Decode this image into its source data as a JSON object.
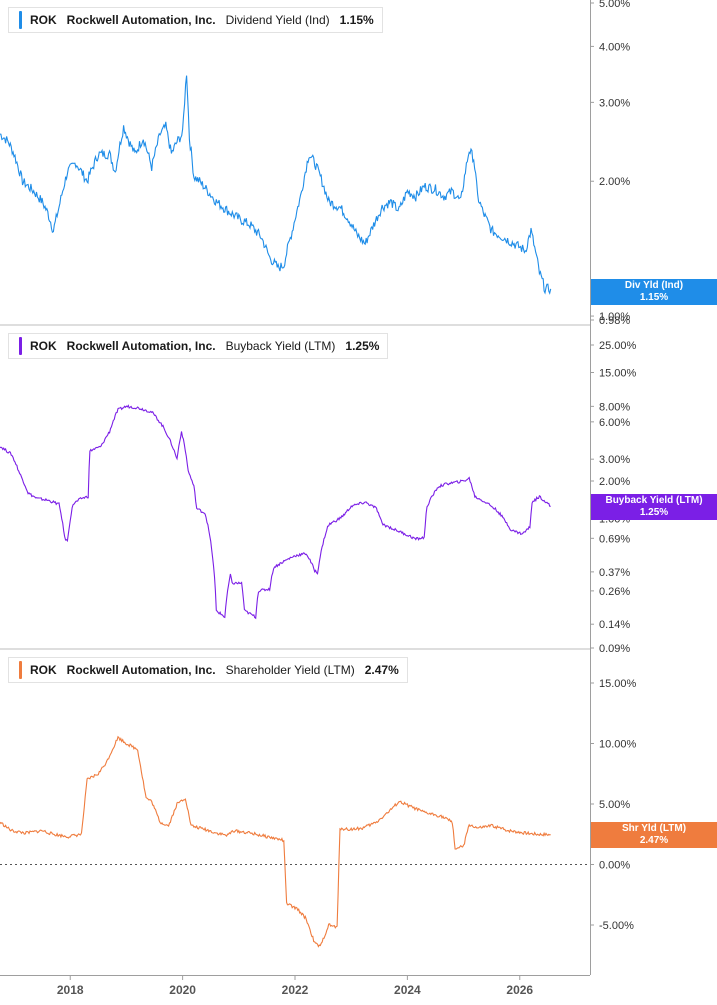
{
  "chart_data": [
    {
      "type": "line",
      "ticker": "ROK",
      "company": "Rockwell Automation, Inc.",
      "metric": "Dividend Yield (Ind)",
      "current_value": "1.15%",
      "value_label_name": "Div Yld (Ind)",
      "color": "#1f8de8",
      "scale": "log",
      "ylim": [
        0.98,
        5.0
      ],
      "yticks": [
        {
          "v": 5.0,
          "label": "5.00%"
        },
        {
          "v": 4.0,
          "label": "4.00%"
        },
        {
          "v": 3.0,
          "label": "3.00%"
        },
        {
          "v": 2.0,
          "label": "2.00%"
        },
        {
          "v": 1.0,
          "label": "1.00%"
        },
        {
          "v": 0.98,
          "label": "0.98%"
        }
      ],
      "x": [
        2016.75,
        2016.9,
        2017.0,
        2017.15,
        2017.35,
        2017.5,
        2017.6,
        2017.7,
        2017.8,
        2017.95,
        2018.1,
        2018.3,
        2018.5,
        2018.7,
        2018.8,
        2018.95,
        2019.05,
        2019.15,
        2019.3,
        2019.45,
        2019.6,
        2019.7,
        2019.8,
        2019.9,
        2020.0,
        2020.07,
        2020.12,
        2020.2,
        2020.3,
        2020.45,
        2020.6,
        2020.8,
        2021.0,
        2021.2,
        2021.4,
        2021.55,
        2021.7,
        2021.8,
        2021.95,
        2022.1,
        2022.25,
        2022.35,
        2022.45,
        2022.6,
        2022.8,
        2022.95,
        2023.1,
        2023.25,
        2023.4,
        2023.55,
        2023.7,
        2023.85,
        2024.0,
        2024.15,
        2024.3,
        2024.5,
        2024.65,
        2024.8,
        2024.95,
        2025.1,
        2025.18,
        2025.25,
        2025.35,
        2025.5,
        2025.7,
        2025.9,
        2026.1,
        2026.2,
        2026.3,
        2026.35,
        2026.45,
        2026.55
      ],
      "values": [
        2.55,
        2.45,
        2.3,
        2.0,
        1.9,
        1.8,
        1.7,
        1.55,
        1.75,
        2.1,
        2.2,
        2.0,
        2.3,
        2.3,
        2.1,
        2.65,
        2.45,
        2.3,
        2.5,
        2.15,
        2.55,
        2.65,
        2.3,
        2.45,
        2.55,
        3.5,
        2.5,
        2.05,
        2.0,
        1.9,
        1.8,
        1.72,
        1.65,
        1.6,
        1.5,
        1.35,
        1.28,
        1.3,
        1.55,
        1.85,
        2.3,
        2.2,
        2.05,
        1.8,
        1.75,
        1.65,
        1.52,
        1.45,
        1.6,
        1.75,
        1.8,
        1.72,
        1.9,
        1.85,
        1.95,
        1.92,
        1.85,
        1.9,
        1.8,
        2.35,
        2.25,
        1.85,
        1.7,
        1.55,
        1.5,
        1.45,
        1.4,
        1.55,
        1.35,
        1.25,
        1.15,
        1.15
      ]
    },
    {
      "type": "line",
      "ticker": "ROK",
      "company": "Rockwell Automation, Inc.",
      "metric": "Buyback Yield (LTM)",
      "current_value": "1.25%",
      "value_label_name": "Buyback Yield (LTM)",
      "color": "#7b1fe6",
      "scale": "log",
      "ylim": [
        0.09,
        35.0
      ],
      "yticks": [
        {
          "v": 25.0,
          "label": "25.00%"
        },
        {
          "v": 15.0,
          "label": "15.00%"
        },
        {
          "v": 8.0,
          "label": "8.00%"
        },
        {
          "v": 6.0,
          "label": "6.00%"
        },
        {
          "v": 3.0,
          "label": "3.00%"
        },
        {
          "v": 2.0,
          "label": "2.00%"
        },
        {
          "v": 1.0,
          "label": "1.00%"
        },
        {
          "v": 0.69,
          "label": "0.69%"
        },
        {
          "v": 0.37,
          "label": "0.37%"
        },
        {
          "v": 0.26,
          "label": "0.26%"
        },
        {
          "v": 0.14,
          "label": "0.14%"
        },
        {
          "v": 0.09,
          "label": "0.09%"
        }
      ],
      "x": [
        2016.75,
        2016.95,
        2017.1,
        2017.25,
        2017.4,
        2017.6,
        2017.8,
        2017.9,
        2017.95,
        2018.05,
        2018.2,
        2018.32,
        2018.35,
        2018.55,
        2018.7,
        2018.85,
        2019.0,
        2019.2,
        2019.45,
        2019.65,
        2019.85,
        2019.9,
        2019.98,
        2020.1,
        2020.2,
        2020.25,
        2020.4,
        2020.6,
        2020.75,
        2020.85,
        2020.88,
        2021.05,
        2021.1,
        2021.3,
        2021.35,
        2021.55,
        2021.62,
        2021.8,
        2022.0,
        2022.2,
        2022.35,
        2022.4,
        2022.58,
        2022.62,
        2022.8,
        2022.9,
        2023.0,
        2023.25,
        2023.45,
        2023.55,
        2023.75,
        2023.95,
        2024.15,
        2024.3,
        2024.35,
        2024.55,
        2024.7,
        2025.0,
        2025.1,
        2025.2,
        2025.45,
        2025.6,
        2025.85,
        2026.05,
        2026.18,
        2026.22,
        2026.35,
        2026.55
      ],
      "values": [
        3.8,
        3.3,
        2.3,
        1.6,
        1.45,
        1.4,
        1.3,
        0.7,
        0.65,
        1.3,
        1.45,
        1.5,
        3.5,
        3.8,
        5.0,
        7.5,
        8.0,
        7.8,
        7.2,
        5.5,
        3.5,
        3.0,
        5.0,
        2.4,
        1.8,
        1.2,
        1.1,
        0.18,
        0.16,
        0.35,
        0.3,
        0.3,
        0.18,
        0.16,
        0.26,
        0.27,
        0.4,
        0.45,
        0.5,
        0.52,
        0.38,
        0.36,
        0.85,
        0.9,
        1.0,
        1.1,
        1.25,
        1.35,
        1.2,
        0.9,
        0.82,
        0.75,
        0.68,
        0.7,
        1.25,
        1.8,
        1.9,
        2.0,
        2.1,
        1.5,
        1.3,
        1.15,
        0.8,
        0.75,
        0.85,
        1.35,
        1.5,
        1.25
      ]
    },
    {
      "type": "line",
      "ticker": "ROK",
      "company": "Rockwell Automation, Inc.",
      "metric": "Shareholder Yield (LTM)",
      "current_value": "2.47%",
      "value_label_name": "Shr Yld (LTM)",
      "color": "#ef7c3e",
      "scale": "linear",
      "ylim": [
        -9.0,
        17.0
      ],
      "zero_line": true,
      "yticks": [
        {
          "v": 15.0,
          "label": "15.00%"
        },
        {
          "v": 10.0,
          "label": "10.00%"
        },
        {
          "v": 5.0,
          "label": "5.00%"
        },
        {
          "v": 0.0,
          "label": "0.00%"
        },
        {
          "v": -5.0,
          "label": "-5.00%"
        }
      ],
      "x": [
        2016.75,
        2016.95,
        2017.2,
        2017.5,
        2017.7,
        2017.95,
        2018.2,
        2018.3,
        2018.5,
        2018.65,
        2018.85,
        2019.0,
        2019.2,
        2019.35,
        2019.45,
        2019.6,
        2019.75,
        2019.9,
        2020.05,
        2020.15,
        2020.4,
        2020.6,
        2020.8,
        2020.9,
        2021.2,
        2021.5,
        2021.8,
        2021.85,
        2021.95,
        2022.05,
        2022.2,
        2022.35,
        2022.45,
        2022.6,
        2022.75,
        2022.8,
        2022.95,
        2023.2,
        2023.45,
        2023.7,
        2023.85,
        2024.1,
        2024.3,
        2024.6,
        2024.8,
        2024.85,
        2025.0,
        2025.1,
        2025.25,
        2025.5,
        2025.8,
        2026.1,
        2026.3,
        2026.55
      ],
      "values": [
        3.5,
        2.8,
        2.6,
        2.8,
        2.5,
        2.3,
        2.5,
        7.0,
        7.5,
        8.5,
        10.5,
        10.0,
        9.5,
        5.5,
        5.2,
        3.5,
        3.2,
        5.0,
        5.5,
        3.2,
        2.9,
        2.6,
        2.4,
        2.8,
        2.6,
        2.3,
        2.0,
        -3.2,
        -3.5,
        -3.7,
        -4.5,
        -6.5,
        -6.8,
        -5.0,
        -5.2,
        3.0,
        2.9,
        3.0,
        3.5,
        4.5,
        5.2,
        4.7,
        4.3,
        4.0,
        3.5,
        1.3,
        1.5,
        3.3,
        3.0,
        3.2,
        2.8,
        2.6,
        2.5,
        2.47
      ]
    }
  ],
  "x_axis": {
    "ticks": [
      {
        "v": 2018,
        "label": "2018"
      },
      {
        "v": 2020,
        "label": "2020"
      },
      {
        "v": 2022,
        "label": "2022"
      },
      {
        "v": 2024,
        "label": "2024"
      },
      {
        "v": 2026,
        "label": "2026"
      }
    ]
  }
}
